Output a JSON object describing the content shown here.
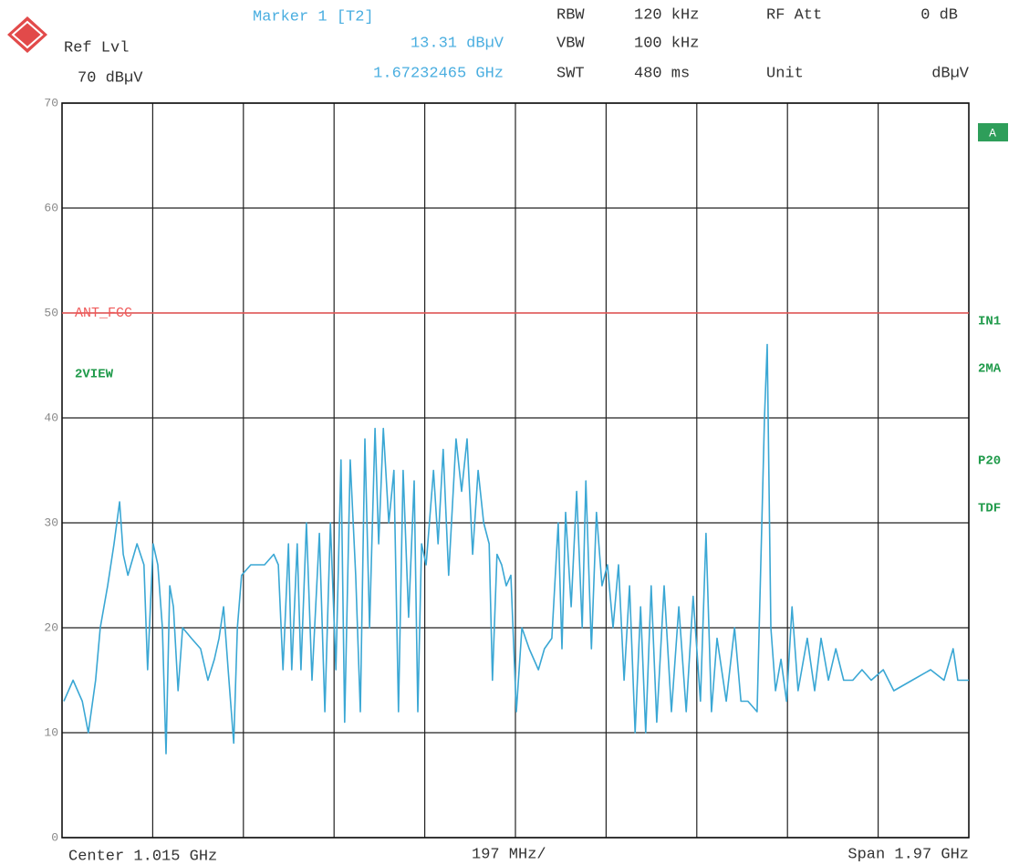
{
  "chart_data": {
    "type": "line",
    "marker_title": "Marker 1 [T2]",
    "marker_level": "13.31 dBµV",
    "marker_freq": "1.67232465 GHz",
    "ref_level_label": "Ref Lvl",
    "ref_level": "70 dBµV",
    "settings": [
      {
        "label": "RBW",
        "value": "120 kHz"
      },
      {
        "label": "VBW",
        "value": "100 kHz"
      },
      {
        "label": "SWT",
        "value": "480 ms"
      },
      {
        "label": "RF Att",
        "value": "0 dB"
      },
      {
        "label": "Unit",
        "value": "dBµV"
      }
    ],
    "trace_label": "2VIEW",
    "side_box": "A",
    "side_labels": [
      "IN1",
      "2MA",
      "P20",
      "TDF"
    ],
    "center": "Center 1.015 GHz",
    "division": "197 MHz/",
    "span": "Span 1.97 GHz",
    "limit_line": {
      "name": "ANT_FCC",
      "value": 50,
      "color": "#ef5a5a"
    },
    "xlim": [
      0.03,
      2.0
    ],
    "ylim": [
      0,
      70
    ],
    "yticks": [
      0,
      10,
      20,
      30,
      40,
      50,
      60,
      70
    ],
    "grid": true,
    "x": [
      0.034,
      0.054,
      0.074,
      0.087,
      0.103,
      0.113,
      0.129,
      0.143,
      0.155,
      0.163,
      0.173,
      0.193,
      0.208,
      0.216,
      0.228,
      0.238,
      0.248,
      0.256,
      0.264,
      0.272,
      0.282,
      0.292,
      0.311,
      0.331,
      0.347,
      0.361,
      0.371,
      0.381,
      0.391,
      0.403,
      0.411,
      0.42,
      0.44,
      0.47,
      0.49,
      0.5,
      0.51,
      0.522,
      0.529,
      0.541,
      0.549,
      0.561,
      0.573,
      0.589,
      0.601,
      0.613,
      0.625,
      0.636,
      0.644,
      0.656,
      0.668,
      0.678,
      0.688,
      0.698,
      0.71,
      0.718,
      0.728,
      0.74,
      0.751,
      0.761,
      0.771,
      0.783,
      0.795,
      0.803,
      0.811,
      0.821,
      0.837,
      0.847,
      0.858,
      0.87,
      0.886,
      0.898,
      0.91,
      0.922,
      0.934,
      0.946,
      0.958,
      0.965,
      0.975,
      0.985,
      0.995,
      1.005,
      1.017,
      1.029,
      1.045,
      1.065,
      1.078,
      1.094,
      1.108,
      1.116,
      1.124,
      1.136,
      1.148,
      1.16,
      1.168,
      1.18,
      1.191,
      1.203,
      1.215,
      1.227,
      1.239,
      1.251,
      1.263,
      1.275,
      1.287,
      1.298,
      1.31,
      1.322,
      1.338,
      1.354,
      1.37,
      1.386,
      1.401,
      1.417,
      1.429,
      1.441,
      1.453,
      1.473,
      1.491,
      1.505,
      1.52,
      1.54,
      1.556,
      1.562,
      1.57,
      1.58,
      1.592,
      1.604,
      1.616,
      1.629,
      1.649,
      1.665,
      1.679,
      1.695,
      1.711,
      1.728,
      1.748,
      1.768,
      1.788,
      1.814,
      1.837,
      1.877,
      1.917,
      1.946,
      1.966,
      1.976,
      2.0
    ],
    "series": [
      {
        "color": "#3aa7d4",
        "values": [
          13,
          15,
          13,
          10,
          15,
          20,
          24,
          28,
          32,
          27,
          25,
          28,
          26,
          16,
          28,
          26,
          20,
          8,
          24,
          22,
          14,
          20,
          19,
          18,
          15,
          17,
          19,
          22,
          16,
          9,
          20,
          25,
          26,
          26,
          27,
          26,
          16,
          28,
          16,
          28,
          16,
          30,
          15,
          29,
          12,
          30,
          16,
          36,
          11,
          36,
          25,
          12,
          38,
          20,
          39,
          28,
          39,
          30,
          35,
          12,
          35,
          21,
          34,
          12,
          28,
          26,
          35,
          28,
          37,
          25,
          38,
          33,
          38,
          27,
          35,
          30,
          28,
          15,
          27,
          26,
          24,
          25,
          12,
          20,
          18,
          16,
          18,
          19,
          30,
          18,
          31,
          22,
          33,
          20,
          34,
          18,
          31,
          24,
          26,
          20,
          26,
          15,
          24,
          10,
          22,
          10,
          24,
          11,
          24,
          12,
          22,
          12,
          23,
          13,
          29,
          12,
          19,
          13,
          20,
          13,
          13,
          12,
          40,
          47,
          20,
          14,
          17,
          13,
          22,
          14,
          19,
          14,
          19,
          15,
          18,
          15,
          15,
          16,
          15,
          16,
          14,
          15,
          16,
          15,
          18,
          15,
          15
        ]
      }
    ]
  }
}
